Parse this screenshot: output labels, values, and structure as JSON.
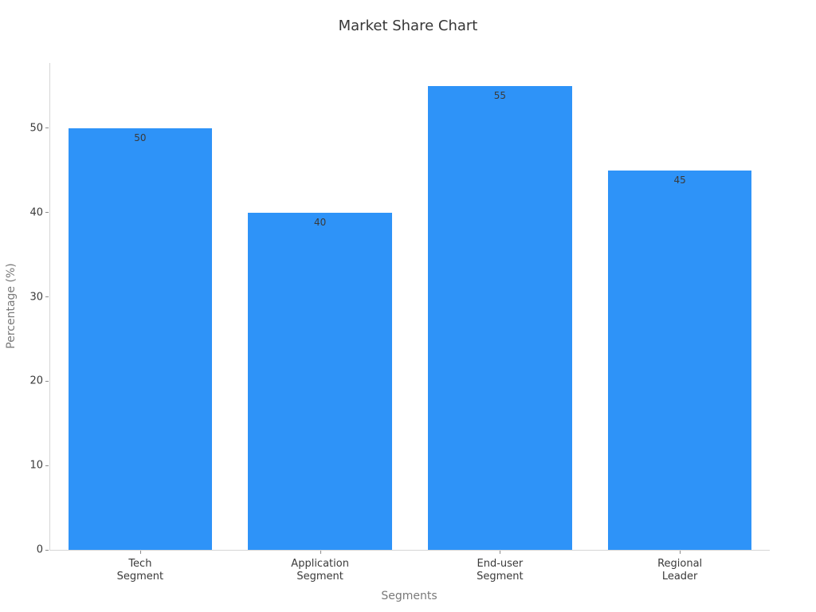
{
  "chart_data": {
    "type": "bar",
    "title": "Market Share Chart",
    "xlabel": "Segments",
    "ylabel": "Percentage (%)",
    "categories": [
      "Tech\nSegment",
      "Application\nSegment",
      "End-user\nSegment",
      "Regional\nLeader"
    ],
    "values": [
      50,
      40,
      55,
      45
    ],
    "value_labels": [
      "50",
      "40",
      "55",
      "45"
    ],
    "yticks": [
      0,
      10,
      20,
      30,
      40,
      50
    ],
    "ylim": [
      0,
      57.75
    ],
    "grid": false,
    "legend": null,
    "bar_width_fraction": 0.8,
    "colors": {
      "bar": "#2E93F8",
      "spine": "#D6D6D6",
      "tick_mark": "#8C8C8C",
      "tick_label": "#3A3A3A",
      "axis_label": "#7A7A7A",
      "title": "#363636",
      "value_label": "#3A3A3A"
    }
  }
}
